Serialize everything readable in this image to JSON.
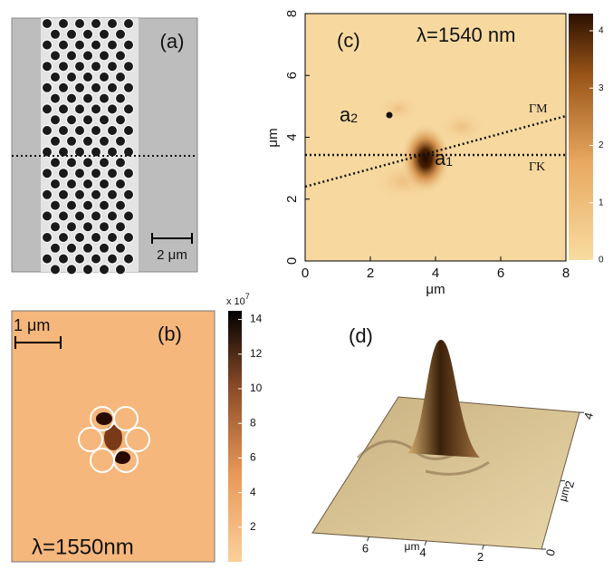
{
  "panels": {
    "a": {
      "label": "(a)",
      "scale_bar": "2 μm"
    },
    "b": {
      "label": "(b)",
      "scale_bar": "1 μm",
      "wavelength": "λ=1550nm",
      "colorbar": {
        "multiplier": "x 10",
        "exponent": "7",
        "lim": [
          0,
          14.5
        ],
        "ticks": [
          2,
          4,
          6,
          8,
          10,
          12,
          14
        ]
      }
    },
    "c": {
      "label": "(c)",
      "wavelength": "λ=1540 nm",
      "xlabel": "μm",
      "ylabel": "μm",
      "xlim": [
        0,
        8
      ],
      "ylim": [
        0,
        8
      ],
      "xticks": [
        0,
        2,
        4,
        6,
        8
      ],
      "yticks": [
        0,
        2,
        4,
        6,
        8
      ],
      "point_a1": {
        "name": "a",
        "sub": "1"
      },
      "point_a2": {
        "name": "a",
        "sub": "2"
      },
      "line_gm": "ΓM",
      "line_gk": "ΓK",
      "colorbar": {
        "lim": [
          0,
          4.3
        ],
        "ticks": [
          0,
          1,
          2,
          3,
          4
        ]
      }
    },
    "d": {
      "label": "(d)",
      "xlabel": "μm",
      "ylabel": "μm",
      "xticks": [
        6,
        4,
        2
      ],
      "yticks": [
        0,
        2,
        4
      ]
    }
  }
}
